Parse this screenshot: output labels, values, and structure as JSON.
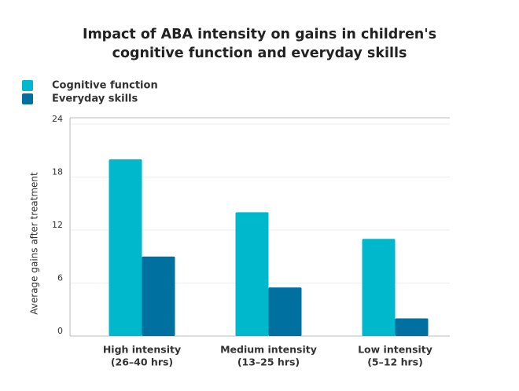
{
  "chart_data": {
    "type": "bar",
    "title": [
      "Impact of ABA intensity on gains in children's",
      "cognitive function and everyday skills"
    ],
    "y_label": "Average gains after treatment",
    "categories": [
      [
        "High intensity",
        "(26–40 hrs)"
      ],
      [
        "Medium intensity",
        "(13–25 hrs)"
      ],
      [
        "Low intensity",
        "(5–12 hrs)"
      ]
    ],
    "series": [
      {
        "name": "Cognitive function",
        "color": "#00b8cc",
        "values": [
          20,
          14,
          11
        ]
      },
      {
        "name": "Everyday skills",
        "color": "#0070a0",
        "values": [
          9,
          5.5,
          2
        ]
      }
    ],
    "ylim": [
      0,
      24.7
    ],
    "yticks": [
      0,
      6,
      12,
      18,
      24
    ],
    "grid": true,
    "legend": "top-left"
  }
}
